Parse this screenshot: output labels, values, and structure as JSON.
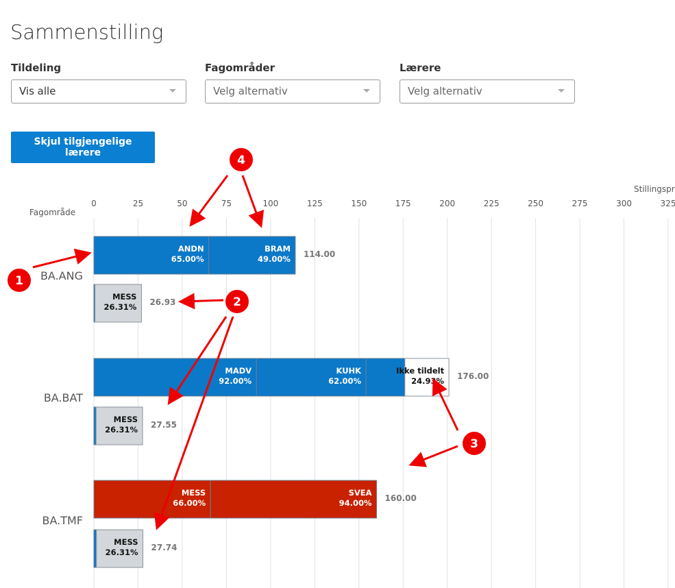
{
  "header": {
    "title": "Sammenstilling"
  },
  "filters": [
    {
      "label": "Tildeling",
      "value": "Vis alle"
    },
    {
      "label": "Fagområder",
      "value": "Velg alternativ"
    },
    {
      "label": "Lærere",
      "value": "Velg alternativ"
    }
  ],
  "button": "Skjul tilgjengelige lærere",
  "annotations": [
    "1",
    "2",
    "3",
    "4"
  ],
  "chart_data": {
    "type": "stacked-bar",
    "x_label": "Stillingsprosent",
    "y_label": "Fagområde",
    "xlim": [
      0,
      325
    ],
    "xticks": [
      0,
      25,
      50,
      75,
      100,
      125,
      150,
      175,
      200,
      225,
      250,
      275,
      300,
      325
    ],
    "grid": true,
    "colors": {
      "assigned": "#0b78c8",
      "other": "#c82200",
      "mess": "#d3d7db",
      "unassigned": "#ffffff"
    },
    "groups": [
      {
        "name": "BA.ANG",
        "bars": [
          {
            "total": 114,
            "total_label": "114.00",
            "segments": [
              {
                "name": "ANDN",
                "value": 65,
                "value_label": "65.00%",
                "kind": "assigned"
              },
              {
                "name": "BRAM",
                "value": 49,
                "value_label": "49.00%",
                "kind": "assigned"
              }
            ]
          },
          {
            "total": 26.93,
            "total_label": "26.93",
            "segments": [
              {
                "name": null,
                "value": 0.62,
                "value_label": null,
                "kind": "assigned"
              },
              {
                "name": "MESS",
                "value": 26.31,
                "value_label": "26.31%",
                "kind": "mess"
              }
            ]
          }
        ]
      },
      {
        "name": "BA.BAT",
        "bars": [
          {
            "total": 176,
            "total_label": "176.00",
            "segments": [
              {
                "name": "MADV",
                "value": 92,
                "value_label": "92.00%",
                "kind": "assigned"
              },
              {
                "name": "KUHK",
                "value": 62,
                "value_label": "62.00%",
                "kind": "assigned"
              },
              {
                "name": null,
                "value": 22,
                "value_label": null,
                "kind": "assigned"
              },
              {
                "name": "Ikke tildelt",
                "value": 24.93,
                "value_label": "24.93%",
                "kind": "unassigned"
              }
            ]
          },
          {
            "total": 27.55,
            "total_label": "27.55",
            "segments": [
              {
                "name": null,
                "value": 1.24,
                "value_label": null,
                "kind": "assigned"
              },
              {
                "name": "MESS",
                "value": 26.31,
                "value_label": "26.31%",
                "kind": "mess"
              }
            ]
          }
        ]
      },
      {
        "name": "BA.TMF",
        "bars": [
          {
            "total": 160,
            "total_label": "160.00",
            "segments": [
              {
                "name": "MESS",
                "value": 66,
                "value_label": "66.00%",
                "kind": "other"
              },
              {
                "name": "SVEA",
                "value": 94,
                "value_label": "94.00%",
                "kind": "other"
              }
            ]
          },
          {
            "total": 27.74,
            "total_label": "27.74",
            "segments": [
              {
                "name": null,
                "value": 1.43,
                "value_label": null,
                "kind": "assigned"
              },
              {
                "name": "MESS",
                "value": 26.31,
                "value_label": "26.31%",
                "kind": "mess"
              }
            ]
          }
        ]
      }
    ]
  }
}
